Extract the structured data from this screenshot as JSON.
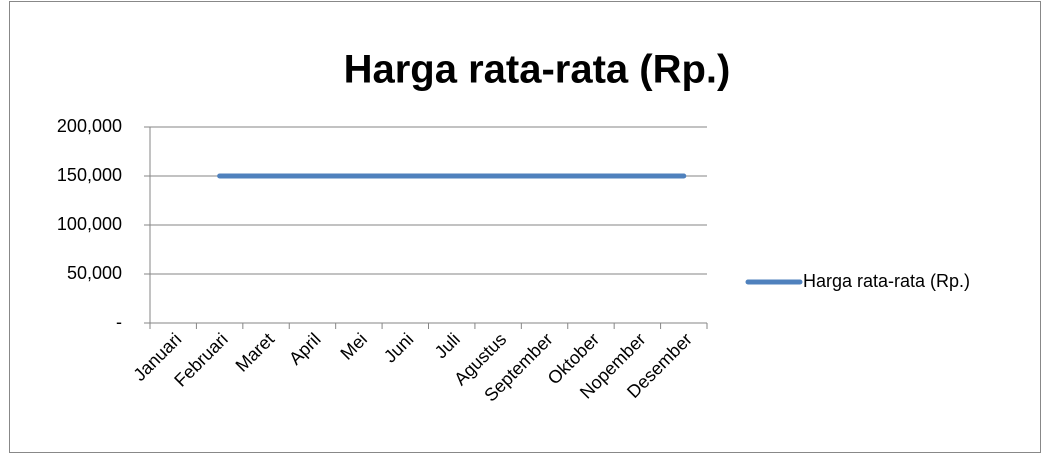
{
  "chart_data": {
    "type": "line",
    "title": "Harga rata-rata (Rp.)",
    "categories": [
      "Januari",
      "Februari",
      "Maret",
      "April",
      "Mei",
      "Juni",
      "Juli",
      "Agustus",
      "September",
      "Oktober",
      "Nopember",
      "Desember"
    ],
    "series": [
      {
        "name": "Harga rata-rata (Rp.)",
        "color": "#4f81bd",
        "values": [
          null,
          150000,
          150000,
          150000,
          150000,
          150000,
          150000,
          150000,
          150000,
          150000,
          150000,
          150000
        ]
      }
    ],
    "ylim": [
      0,
      200000
    ],
    "yticks": [
      {
        "value": 0,
        "label": "-"
      },
      {
        "value": 50000,
        "label": "50,000"
      },
      {
        "value": 100000,
        "label": "100,000"
      },
      {
        "value": 150000,
        "label": "150,000"
      },
      {
        "value": 200000,
        "label": "200,000"
      }
    ],
    "grid": true,
    "legend": "right"
  }
}
